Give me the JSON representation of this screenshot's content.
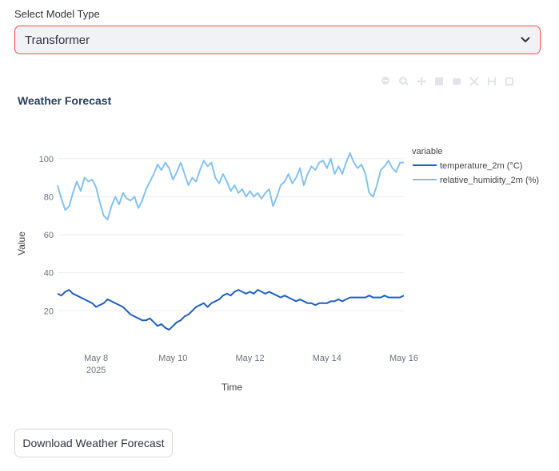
{
  "selector": {
    "label": "Select Model Type",
    "value": "Transformer"
  },
  "toolbar": {
    "icons": [
      "zoom-out-icon",
      "zoom-in-icon",
      "pan-icon",
      "box-select-icon",
      "lasso-icon",
      "autoscale-icon",
      "reset-axes-icon",
      "download-png-icon"
    ]
  },
  "chart_data": {
    "type": "line",
    "title": "Weather Forecast",
    "xlabel": "Time",
    "ylabel": "Value",
    "x_start_day": 7,
    "x_end_day": 16,
    "x_ticks": [
      {
        "day": 8,
        "label": "May 8",
        "sublabel": "2025"
      },
      {
        "day": 10,
        "label": "May 10",
        "sublabel": ""
      },
      {
        "day": 12,
        "label": "May 12",
        "sublabel": ""
      },
      {
        "day": 14,
        "label": "May 14",
        "sublabel": ""
      },
      {
        "day": 16,
        "label": "May 16",
        "sublabel": ""
      }
    ],
    "y_ticks": [
      20,
      40,
      60,
      80,
      100
    ],
    "ylim": [
      5,
      110
    ],
    "grid": true,
    "legend": {
      "title": "variable",
      "position": "top-right"
    },
    "series": [
      {
        "name": "temperature_2m (°C)",
        "color": "#1f5fbf",
        "points": [
          [
            7.0,
            29
          ],
          [
            7.1,
            28
          ],
          [
            7.2,
            30
          ],
          [
            7.3,
            31
          ],
          [
            7.4,
            29
          ],
          [
            7.5,
            28
          ],
          [
            7.6,
            27
          ],
          [
            7.7,
            26
          ],
          [
            7.8,
            25
          ],
          [
            7.9,
            24
          ],
          [
            8.0,
            22
          ],
          [
            8.1,
            23
          ],
          [
            8.2,
            24
          ],
          [
            8.3,
            26
          ],
          [
            8.4,
            25
          ],
          [
            8.5,
            24
          ],
          [
            8.6,
            23
          ],
          [
            8.7,
            22
          ],
          [
            8.8,
            20
          ],
          [
            8.9,
            18
          ],
          [
            9.0,
            17
          ],
          [
            9.1,
            16
          ],
          [
            9.2,
            15
          ],
          [
            9.3,
            15
          ],
          [
            9.4,
            16
          ],
          [
            9.5,
            14
          ],
          [
            9.6,
            12
          ],
          [
            9.7,
            13
          ],
          [
            9.8,
            11
          ],
          [
            9.9,
            10
          ],
          [
            10.0,
            12
          ],
          [
            10.1,
            14
          ],
          [
            10.2,
            15
          ],
          [
            10.3,
            17
          ],
          [
            10.4,
            18
          ],
          [
            10.5,
            20
          ],
          [
            10.6,
            22
          ],
          [
            10.7,
            23
          ],
          [
            10.8,
            24
          ],
          [
            10.9,
            22
          ],
          [
            11.0,
            24
          ],
          [
            11.1,
            25
          ],
          [
            11.2,
            26
          ],
          [
            11.3,
            28
          ],
          [
            11.4,
            29
          ],
          [
            11.5,
            28
          ],
          [
            11.6,
            30
          ],
          [
            11.7,
            31
          ],
          [
            11.8,
            30
          ],
          [
            11.9,
            29
          ],
          [
            12.0,
            30
          ],
          [
            12.1,
            29
          ],
          [
            12.2,
            31
          ],
          [
            12.3,
            30
          ],
          [
            12.4,
            29
          ],
          [
            12.5,
            30
          ],
          [
            12.6,
            29
          ],
          [
            12.7,
            28
          ],
          [
            12.8,
            27
          ],
          [
            12.9,
            28
          ],
          [
            13.0,
            27
          ],
          [
            13.1,
            26
          ],
          [
            13.2,
            25
          ],
          [
            13.3,
            26
          ],
          [
            13.4,
            25
          ],
          [
            13.5,
            24
          ],
          [
            13.6,
            24
          ],
          [
            13.7,
            23
          ],
          [
            13.8,
            24
          ],
          [
            13.9,
            24
          ],
          [
            14.0,
            24
          ],
          [
            14.1,
            25
          ],
          [
            14.2,
            25
          ],
          [
            14.3,
            26
          ],
          [
            14.4,
            25
          ],
          [
            14.5,
            26
          ],
          [
            14.6,
            27
          ],
          [
            14.7,
            27
          ],
          [
            14.8,
            27
          ],
          [
            14.9,
            27
          ],
          [
            15.0,
            27
          ],
          [
            15.1,
            28
          ],
          [
            15.2,
            27
          ],
          [
            15.3,
            27
          ],
          [
            15.4,
            27
          ],
          [
            15.5,
            28
          ],
          [
            15.6,
            27
          ],
          [
            15.7,
            27
          ],
          [
            15.8,
            27
          ],
          [
            15.9,
            27
          ],
          [
            16.0,
            28
          ]
        ]
      },
      {
        "name": "relative_humidity_2m (%)",
        "color": "#84c2f4",
        "points": [
          [
            7.0,
            86
          ],
          [
            7.1,
            79
          ],
          [
            7.2,
            73
          ],
          [
            7.3,
            75
          ],
          [
            7.4,
            82
          ],
          [
            7.5,
            88
          ],
          [
            7.6,
            83
          ],
          [
            7.7,
            90
          ],
          [
            7.8,
            88
          ],
          [
            7.9,
            89
          ],
          [
            8.0,
            85
          ],
          [
            8.1,
            77
          ],
          [
            8.2,
            70
          ],
          [
            8.3,
            68
          ],
          [
            8.4,
            75
          ],
          [
            8.5,
            80
          ],
          [
            8.6,
            76
          ],
          [
            8.7,
            82
          ],
          [
            8.8,
            79
          ],
          [
            8.9,
            78
          ],
          [
            9.0,
            80
          ],
          [
            9.1,
            74
          ],
          [
            9.2,
            78
          ],
          [
            9.3,
            84
          ],
          [
            9.4,
            88
          ],
          [
            9.5,
            92
          ],
          [
            9.6,
            97
          ],
          [
            9.7,
            94
          ],
          [
            9.8,
            98
          ],
          [
            9.9,
            95
          ],
          [
            10.0,
            89
          ],
          [
            10.1,
            93
          ],
          [
            10.2,
            98
          ],
          [
            10.3,
            92
          ],
          [
            10.4,
            86
          ],
          [
            10.5,
            90
          ],
          [
            10.6,
            88
          ],
          [
            10.7,
            94
          ],
          [
            10.8,
            99
          ],
          [
            10.9,
            96
          ],
          [
            11.0,
            98
          ],
          [
            11.1,
            90
          ],
          [
            11.2,
            87
          ],
          [
            11.3,
            92
          ],
          [
            11.4,
            88
          ],
          [
            11.5,
            83
          ],
          [
            11.6,
            86
          ],
          [
            11.7,
            82
          ],
          [
            11.8,
            84
          ],
          [
            11.9,
            80
          ],
          [
            12.0,
            83
          ],
          [
            12.1,
            80
          ],
          [
            12.2,
            82
          ],
          [
            12.3,
            79
          ],
          [
            12.4,
            82
          ],
          [
            12.5,
            84
          ],
          [
            12.6,
            75
          ],
          [
            12.7,
            80
          ],
          [
            12.8,
            86
          ],
          [
            12.9,
            88
          ],
          [
            13.0,
            92
          ],
          [
            13.1,
            87
          ],
          [
            13.2,
            90
          ],
          [
            13.3,
            95
          ],
          [
            13.4,
            86
          ],
          [
            13.5,
            92
          ],
          [
            13.6,
            96
          ],
          [
            13.7,
            94
          ],
          [
            13.8,
            98
          ],
          [
            13.9,
            99
          ],
          [
            14.0,
            95
          ],
          [
            14.1,
            100
          ],
          [
            14.2,
            92
          ],
          [
            14.3,
            96
          ],
          [
            14.4,
            92
          ],
          [
            14.5,
            98
          ],
          [
            14.6,
            103
          ],
          [
            14.7,
            98
          ],
          [
            14.8,
            95
          ],
          [
            14.9,
            97
          ],
          [
            15.0,
            92
          ],
          [
            15.1,
            82
          ],
          [
            15.2,
            80
          ],
          [
            15.3,
            86
          ],
          [
            15.4,
            94
          ],
          [
            15.5,
            96
          ],
          [
            15.6,
            99
          ],
          [
            15.7,
            95
          ],
          [
            15.8,
            93
          ],
          [
            15.9,
            98
          ],
          [
            16.0,
            98
          ]
        ]
      }
    ]
  },
  "download_button": {
    "label": "Download Weather Forecast"
  }
}
